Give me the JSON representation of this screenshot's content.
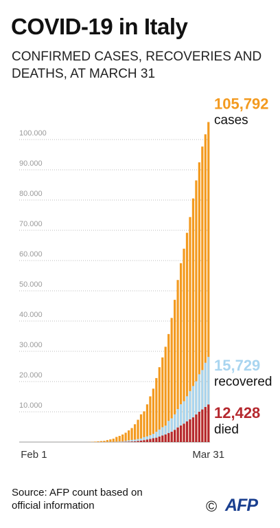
{
  "title": "COVID-19 in Italy",
  "subtitle": "CONFIRMED CASES, RECOVERIES AND DEATHS, AT MARCH 31",
  "source": "Source: AFP count based on official information",
  "credit_symbol": "©",
  "logo": "AFP",
  "chart_data": {
    "type": "bar",
    "categories": [
      "Feb 1",
      null,
      null,
      null,
      null,
      null,
      null,
      null,
      null,
      null,
      null,
      null,
      null,
      null,
      null,
      null,
      null,
      null,
      null,
      null,
      null,
      null,
      null,
      null,
      null,
      null,
      null,
      null,
      null,
      null,
      null,
      null,
      null,
      null,
      null,
      null,
      null,
      null,
      null,
      null,
      null,
      null,
      null,
      null,
      null,
      null,
      null,
      null,
      null,
      null,
      null,
      null,
      null,
      null,
      null,
      null,
      null,
      null,
      null,
      "Mar 31"
    ],
    "series": [
      {
        "name": "cases",
        "color": "#f39a1f",
        "values": [
          2,
          2,
          2,
          2,
          2,
          3,
          3,
          3,
          3,
          3,
          3,
          3,
          3,
          3,
          3,
          3,
          3,
          3,
          3,
          3,
          20,
          79,
          150,
          229,
          322,
          400,
          650,
          888,
          1128,
          1694,
          2036,
          2502,
          3089,
          3858,
          4636,
          5883,
          7375,
          9172,
          10149,
          12462,
          15113,
          17660,
          21157,
          24747,
          27980,
          31506,
          35713,
          41035,
          47021,
          53578,
          59138,
          63927,
          69176,
          74386,
          80539,
          86498,
          92472,
          97689,
          101739,
          105792
        ],
        "value_labels": [
          null,
          null,
          null,
          null,
          null,
          null,
          null,
          null,
          null,
          null,
          null,
          null,
          null,
          null,
          null,
          null,
          null,
          null,
          null,
          null,
          null,
          null,
          null,
          null,
          null,
          null,
          null,
          null,
          null,
          null,
          null,
          null,
          null,
          null,
          null,
          null,
          null,
          null,
          null,
          null,
          null,
          null,
          null,
          null,
          null,
          null,
          null,
          null,
          null,
          null,
          null,
          null,
          null,
          null,
          null,
          null,
          null,
          null,
          null,
          "105,792"
        ]
      },
      {
        "name": "recovered",
        "color": "#a9d5f0",
        "values": [
          0,
          0,
          0,
          0,
          0,
          0,
          0,
          0,
          0,
          0,
          0,
          0,
          0,
          0,
          0,
          0,
          0,
          0,
          0,
          0,
          0,
          1,
          2,
          1,
          1,
          3,
          45,
          46,
          46,
          83,
          149,
          160,
          276,
          414,
          523,
          589,
          622,
          724,
          1004,
          1045,
          1258,
          1439,
          1966,
          2335,
          2749,
          2941,
          4025,
          4440,
          5129,
          6072,
          7024,
          7432,
          8326,
          9362,
          10361,
          10950,
          12384,
          13030,
          14620,
          15729
        ],
        "value_labels": [
          null,
          null,
          null,
          null,
          null,
          null,
          null,
          null,
          null,
          null,
          null,
          null,
          null,
          null,
          null,
          null,
          null,
          null,
          null,
          null,
          null,
          null,
          null,
          null,
          null,
          null,
          null,
          null,
          null,
          null,
          null,
          null,
          null,
          null,
          null,
          null,
          null,
          null,
          null,
          null,
          null,
          null,
          null,
          null,
          null,
          null,
          null,
          null,
          null,
          null,
          null,
          null,
          null,
          null,
          null,
          null,
          null,
          null,
          null,
          "15,729"
        ]
      },
      {
        "name": "died",
        "color": "#b5282e",
        "values": [
          0,
          0,
          0,
          0,
          0,
          0,
          0,
          0,
          0,
          0,
          0,
          0,
          0,
          0,
          0,
          0,
          0,
          0,
          0,
          0,
          1,
          2,
          3,
          7,
          10,
          12,
          17,
          21,
          29,
          34,
          52,
          79,
          107,
          148,
          197,
          233,
          366,
          463,
          631,
          827,
          1016,
          1266,
          1441,
          1809,
          2158,
          2503,
          2978,
          3405,
          4032,
          4825,
          5476,
          6077,
          6820,
          7503,
          8165,
          9134,
          10023,
          10779,
          11591,
          12428
        ],
        "value_labels": [
          null,
          null,
          null,
          null,
          null,
          null,
          null,
          null,
          null,
          null,
          null,
          null,
          null,
          null,
          null,
          null,
          null,
          null,
          null,
          null,
          null,
          null,
          null,
          null,
          null,
          null,
          null,
          null,
          null,
          null,
          null,
          null,
          null,
          null,
          null,
          null,
          null,
          null,
          null,
          null,
          null,
          null,
          null,
          null,
          null,
          null,
          null,
          null,
          null,
          null,
          null,
          null,
          null,
          null,
          null,
          null,
          null,
          null,
          null,
          "12,428"
        ]
      }
    ],
    "ylim": [
      0,
      110000
    ],
    "yticks": [
      {
        "value": 10000,
        "label": "10.000"
      },
      {
        "value": 20000,
        "label": "20.000"
      },
      {
        "value": 30000,
        "label": "30.000"
      },
      {
        "value": 40000,
        "label": "40.000"
      },
      {
        "value": 50000,
        "label": "50.000"
      },
      {
        "value": 60000,
        "label": "60.000"
      },
      {
        "value": 70000,
        "label": "70.000"
      },
      {
        "value": 80000,
        "label": "80.000"
      },
      {
        "value": 90000,
        "label": "90.000"
      },
      {
        "value": 100000,
        "label": "100.000"
      }
    ],
    "grid": true
  }
}
